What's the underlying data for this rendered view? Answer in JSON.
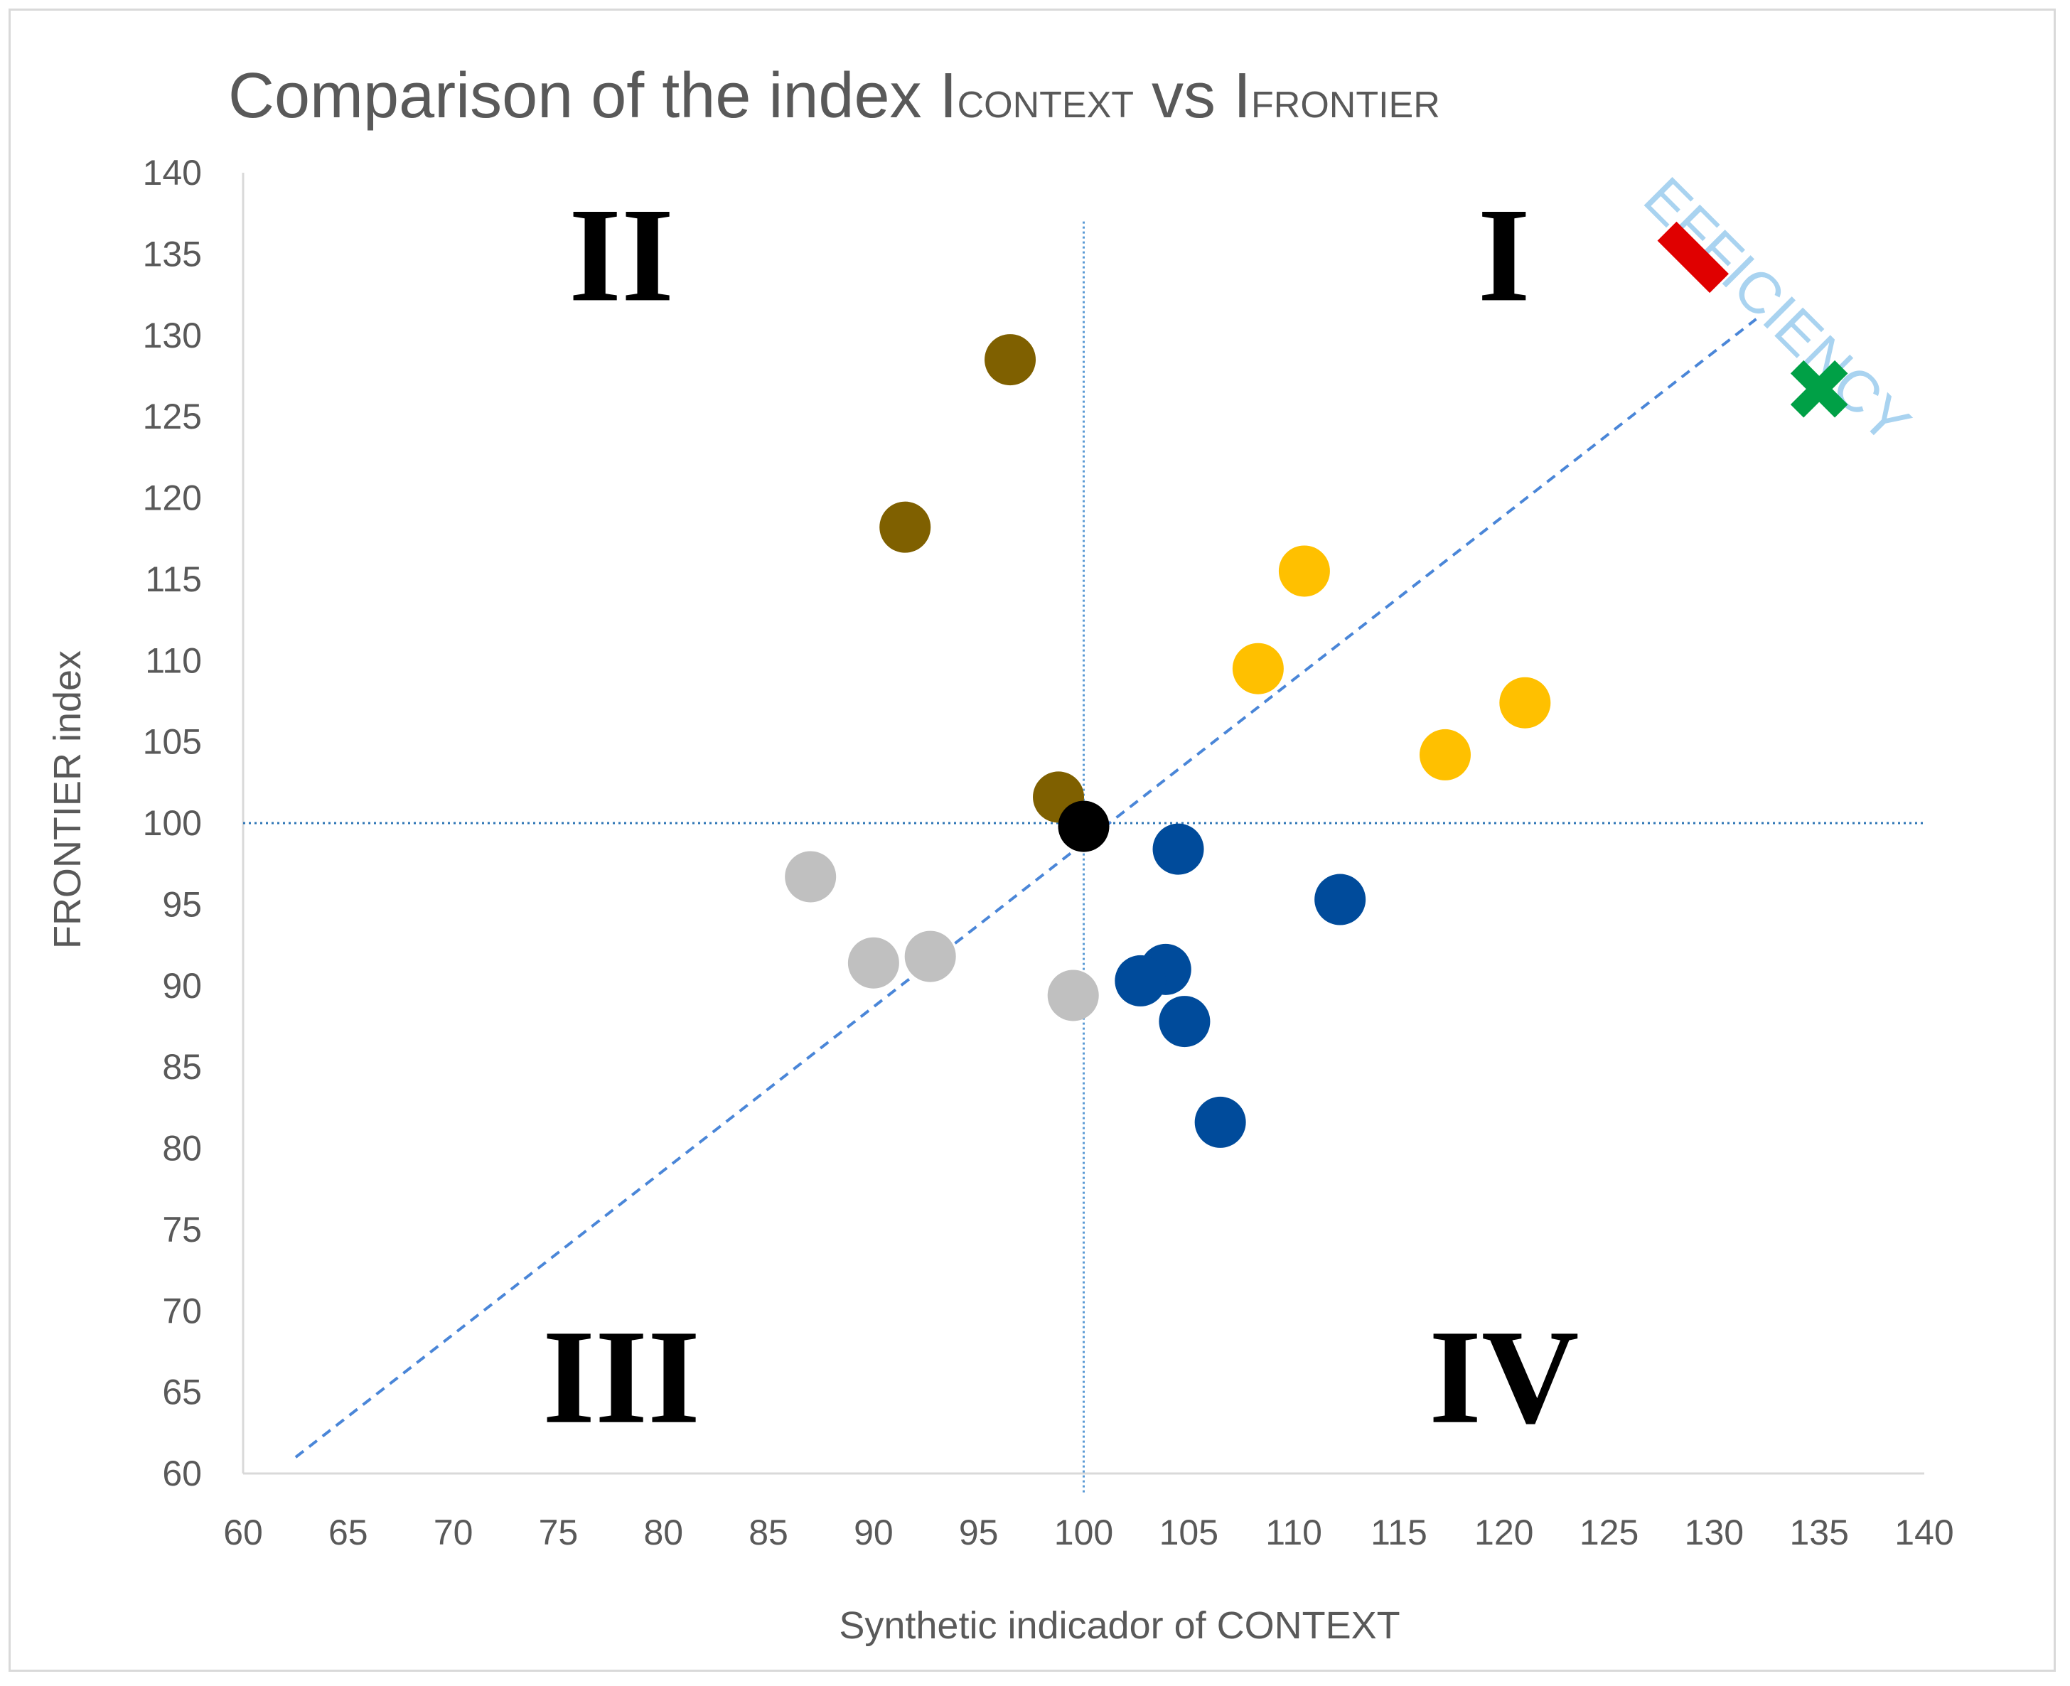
{
  "chart_data": {
    "type": "scatter",
    "title": {
      "part1": "Comparison of the index I",
      "sub1": "CONTEXT",
      "part2": " vs I",
      "sub2": "FRONTIER"
    },
    "xlabel": "Synthetic indicador of CONTEXT",
    "ylabel": "FRONTIER index",
    "xlim": [
      60,
      140
    ],
    "ylim": [
      60,
      140
    ],
    "xticks": [
      60,
      65,
      70,
      75,
      80,
      85,
      90,
      95,
      100,
      105,
      110,
      115,
      120,
      125,
      130,
      135,
      140
    ],
    "yticks": [
      60,
      65,
      70,
      75,
      80,
      85,
      90,
      95,
      100,
      105,
      110,
      115,
      120,
      125,
      130,
      135,
      140
    ],
    "reference_lines": {
      "x": 100,
      "y": 100
    },
    "efficiency_line": {
      "from": [
        62.5,
        61
      ],
      "to": [
        132,
        131
      ],
      "label": "EFFICIENCY"
    },
    "quadrants": [
      {
        "label": "I",
        "x": 120,
        "y": 135
      },
      {
        "label": "II",
        "x": 78,
        "y": 135
      },
      {
        "label": "III",
        "x": 78,
        "y": 66
      },
      {
        "label": "IV",
        "x": 120,
        "y": 66
      }
    ],
    "series": [
      {
        "color": "#7f6000",
        "points": [
          [
            96.5,
            128.5
          ],
          [
            91.5,
            118.2
          ],
          [
            98.8,
            101.6
          ]
        ]
      },
      {
        "color": "#ffc000",
        "points": [
          [
            110.5,
            115.5
          ],
          [
            108.3,
            109.5
          ],
          [
            121,
            107.4
          ],
          [
            117.2,
            104.2
          ]
        ]
      },
      {
        "color": "#c0c0c0",
        "points": [
          [
            87,
            96.7
          ],
          [
            90,
            91.4
          ],
          [
            92.7,
            91.8
          ],
          [
            99.5,
            89.4
          ]
        ]
      },
      {
        "color": "#004b9b",
        "points": [
          [
            104.5,
            98.4
          ],
          [
            112.2,
            95.3
          ],
          [
            103.9,
            91
          ],
          [
            102.7,
            90.3
          ],
          [
            104.8,
            87.8
          ],
          [
            106.5,
            81.6
          ]
        ]
      },
      {
        "color": "#000000",
        "points": [
          [
            100,
            99.8
          ]
        ]
      }
    ],
    "markers": [
      {
        "shape": "dash",
        "color": "#e00000",
        "x": 129,
        "y": 134.8
      },
      {
        "shape": "cross",
        "color": "#00a046",
        "x": 135,
        "y": 126.7
      }
    ]
  }
}
